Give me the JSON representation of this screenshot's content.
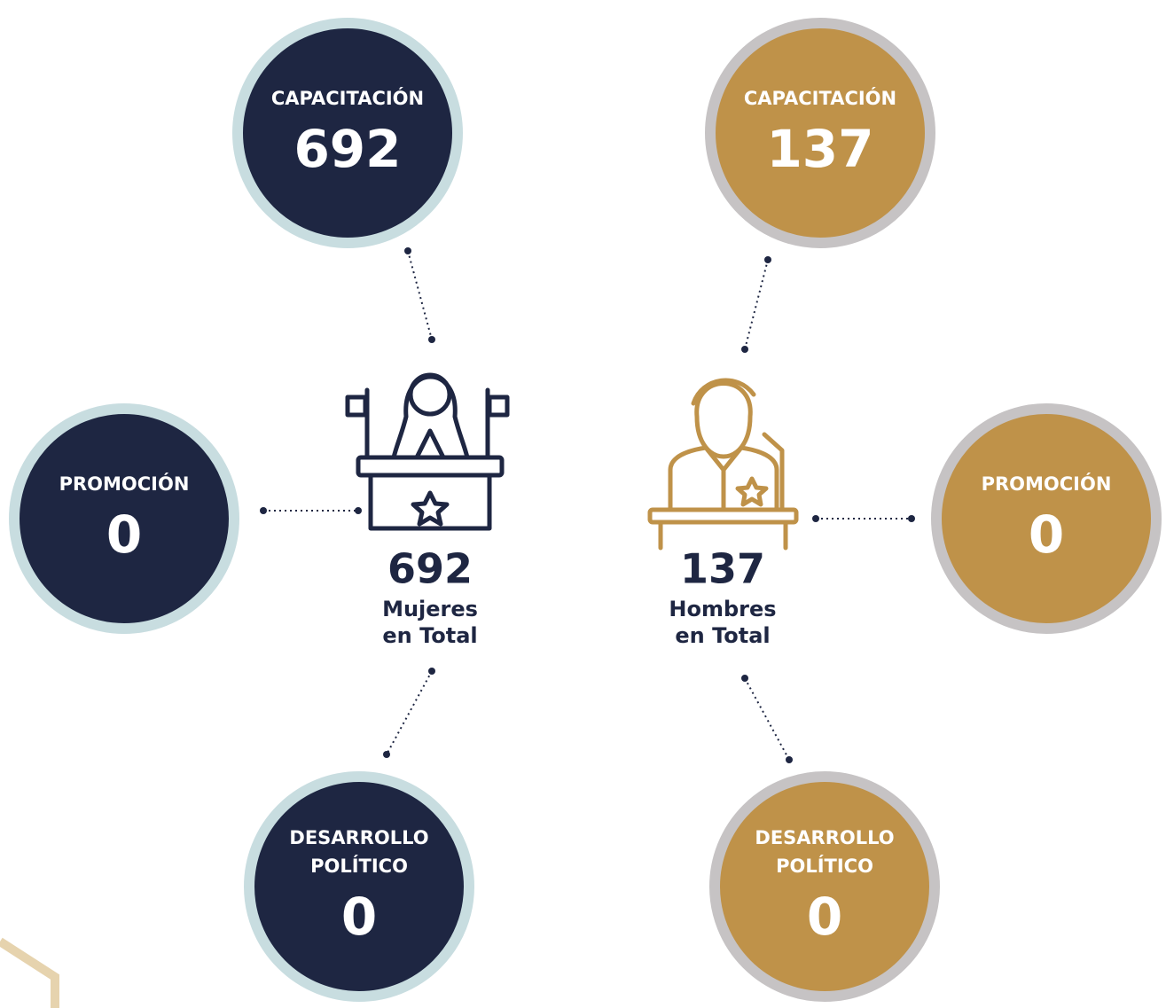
{
  "groups": [
    {
      "total": 692,
      "label": [
        "Mujeres",
        "en Total"
      ],
      "circles": [
        {
          "label": [
            "CAPACITACIÓN"
          ],
          "value": 692
        },
        {
          "label": [
            "PROMOCIÓN"
          ],
          "value": 0
        },
        {
          "label": [
            "DESARROLLO",
            "POLÍTICO"
          ],
          "value": 0
        }
      ]
    },
    {
      "total": 137,
      "label": [
        "Hombres",
        "en Total"
      ],
      "circles": [
        {
          "label": [
            "CAPACITACIÓN"
          ],
          "value": 137
        },
        {
          "label": [
            "PROMOCIÓN"
          ],
          "value": 0
        },
        {
          "label": [
            "DESARROLLO",
            "POLÍTICO"
          ],
          "value": 0
        }
      ]
    }
  ]
}
